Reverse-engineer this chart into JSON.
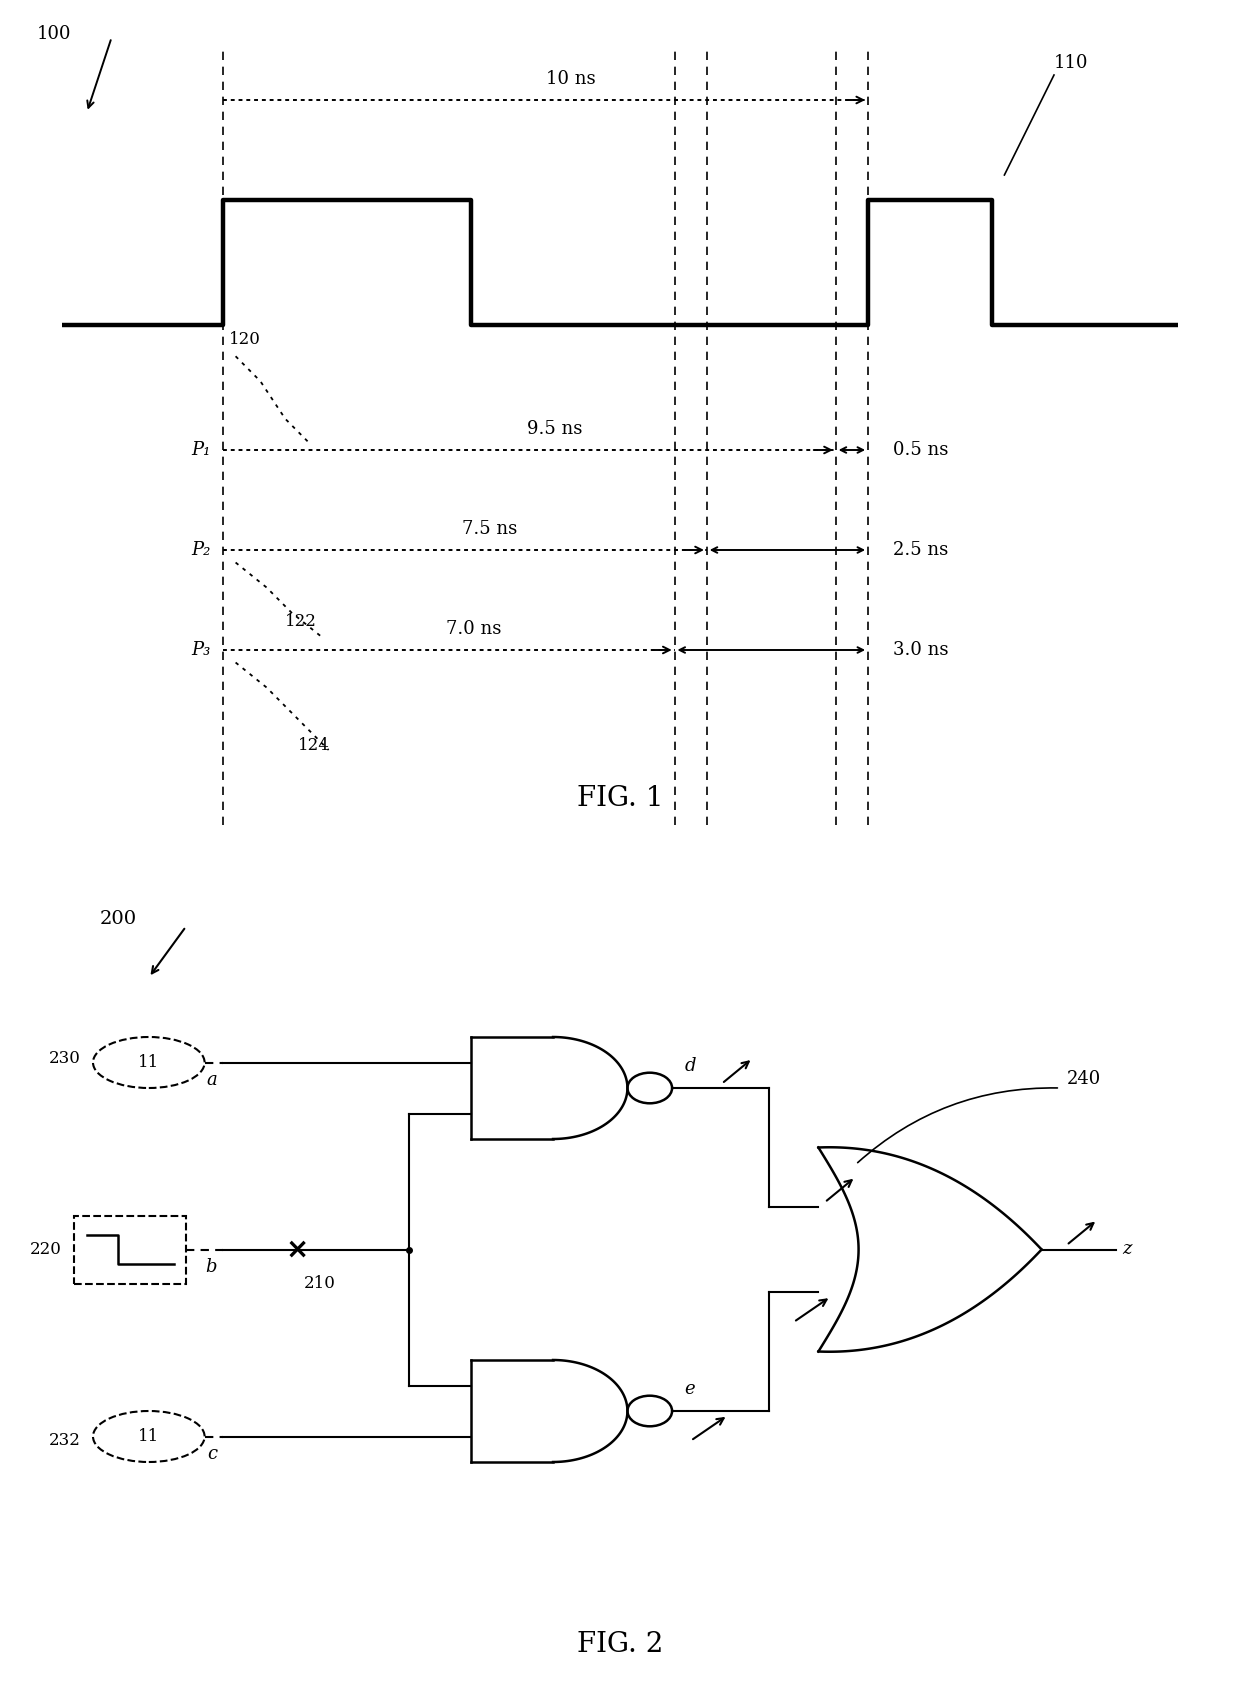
{
  "fig1": {
    "title": "FIG. 1",
    "label_100": "100",
    "label_110": "110",
    "label_120": "120",
    "label_122": "122",
    "label_124": "124",
    "p1_label": "P₁",
    "p2_label": "P₂",
    "p3_label": "P₃",
    "label_10ns": "10 ns",
    "label_9p5ns": "9.5 ns",
    "label_7p5ns": "7.5 ns",
    "label_7p0ns": "7.0 ns",
    "label_0p5ns": "0.5 ns",
    "label_2p5ns": "2.5 ns",
    "label_3p0ns": "3.0 ns"
  },
  "fig2": {
    "title": "FIG. 2",
    "label_200": "200",
    "label_210": "210",
    "label_220": "220",
    "label_230": "230",
    "label_232": "232",
    "label_240": "240",
    "label_a": "a",
    "label_b": "b",
    "label_c": "c",
    "label_d": "d",
    "label_e": "e",
    "label_z": "z"
  },
  "bg_color": "#ffffff",
  "line_color": "#000000"
}
